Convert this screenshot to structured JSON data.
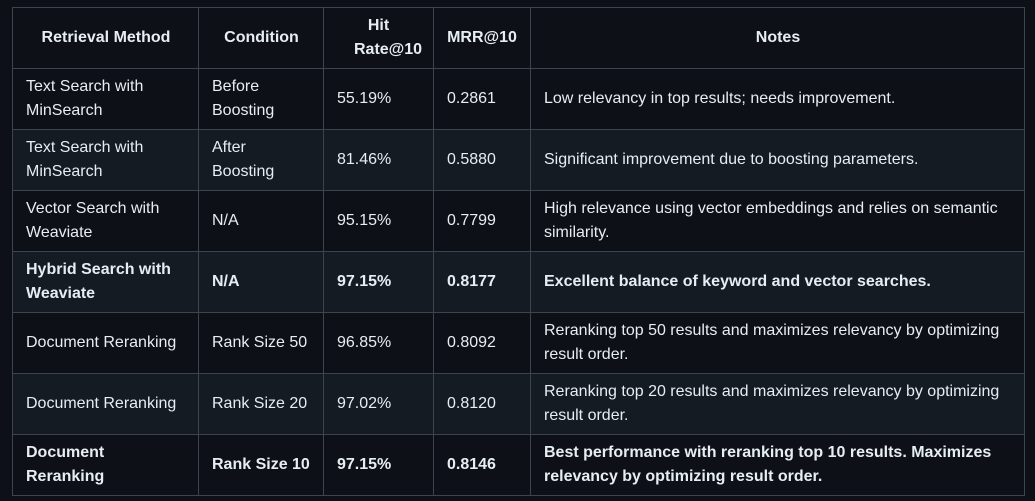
{
  "table": {
    "headers": [
      "Retrieval Method",
      "Condition",
      "Hit Rate@10",
      "MRR@10",
      "Notes"
    ],
    "rows": [
      {
        "method": "Text Search with MinSearch",
        "condition": "Before Boosting",
        "hit_rate": "55.19%",
        "mrr": "0.2861",
        "notes": "Low relevancy in top results; needs improvement.",
        "bold": false
      },
      {
        "method": "Text Search with MinSearch",
        "condition": "After Boosting",
        "hit_rate": "81.46%",
        "mrr": "0.5880",
        "notes": "Significant improvement due to boosting parameters.",
        "bold": false
      },
      {
        "method": "Vector Search with Weaviate",
        "condition": "N/A",
        "hit_rate": "95.15%",
        "mrr": "0.7799",
        "notes": "High relevance using vector embeddings and relies on semantic similarity.",
        "bold": false
      },
      {
        "method": "Hybrid Search with Weaviate",
        "condition": "N/A",
        "hit_rate": "97.15%",
        "mrr": "0.8177",
        "notes": "Excellent balance of keyword and vector searches.",
        "bold": true
      },
      {
        "method": "Document Reranking",
        "condition": "Rank Size 50",
        "hit_rate": "96.85%",
        "mrr": "0.8092",
        "notes": "Reranking top 50 results and maximizes relevancy by optimizing result order.",
        "bold": false
      },
      {
        "method": "Document Reranking",
        "condition": "Rank Size 20",
        "hit_rate": "97.02%",
        "mrr": "0.8120",
        "notes": "Reranking top 20 results and maximizes relevancy by optimizing result order.",
        "bold": false
      },
      {
        "method": "Document Reranking",
        "condition": "Rank Size 10",
        "hit_rate": "97.15%",
        "mrr": "0.8146",
        "notes": "Best performance with reranking top 10 results. Maximizes relevancy by optimizing result order.",
        "bold": true
      }
    ]
  }
}
